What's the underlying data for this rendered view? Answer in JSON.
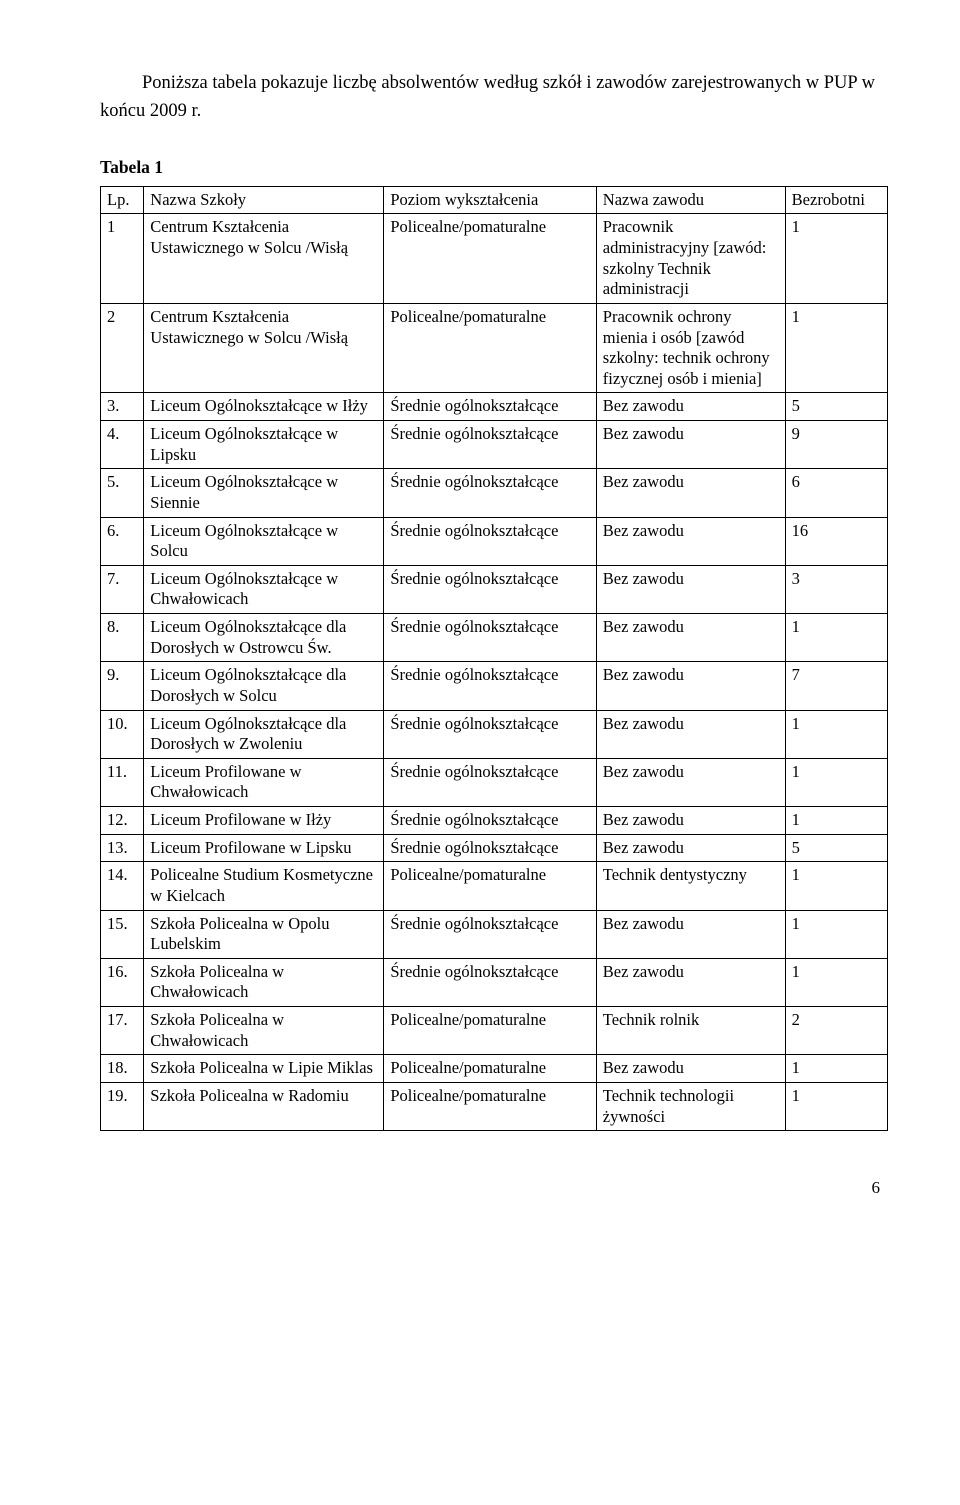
{
  "intro": "Poniższa tabela pokazuje liczbę absolwentów według szkół i zawodów zarejestrowanych w PUP w końcu 2009 r.",
  "table_label": "Tabela 1",
  "headers": {
    "lp": "Lp.",
    "school": "Nazwa Szkoły",
    "level": "Poziom wykształcenia",
    "job": "Nazwa zawodu",
    "count": "Bezrobotni"
  },
  "rows": [
    {
      "lp": "1",
      "school": "Centrum Kształcenia Ustawicznego w Solcu /Wisłą",
      "level": "Policealne/pomaturalne",
      "job": "Pracownik administracyjny [zawód: szkolny Technik administracji",
      "count": "1"
    },
    {
      "lp": "2",
      "school": "Centrum Kształcenia Ustawicznego w Solcu /Wisłą",
      "level": "Policealne/pomaturalne",
      "job": "Pracownik ochrony mienia i osób [zawód szkolny: technik ochrony fizycznej osób i mienia]",
      "count": "1"
    },
    {
      "lp": "3.",
      "school": " Liceum Ogólnokształcące w Iłży",
      "level": "Średnie ogólnokształcące",
      "job": "Bez zawodu",
      "count": "5"
    },
    {
      "lp": "4.",
      "school": "Liceum Ogólnokształcące w Lipsku",
      "level": "Średnie ogólnokształcące",
      "job": "Bez zawodu",
      "count": "9"
    },
    {
      "lp": "5.",
      "school": "Liceum Ogólnokształcące w Siennie",
      "level": "Średnie ogólnokształcące",
      "job": "Bez zawodu",
      "count": "6"
    },
    {
      "lp": "6.",
      "school": "Liceum Ogólnokształcące w Solcu",
      "level": "Średnie ogólnokształcące",
      "job": "Bez zawodu",
      "count": "16"
    },
    {
      "lp": "7.",
      "school": "Liceum Ogólnokształcące w Chwałowicach",
      "level": "Średnie ogólnokształcące",
      "job": "Bez zawodu",
      "count": "3"
    },
    {
      "lp": "8.",
      "school": "Liceum Ogólnokształcące dla Dorosłych w Ostrowcu Św.",
      "level": "Średnie ogólnokształcące",
      "job": "Bez zawodu",
      "count": "1"
    },
    {
      "lp": "9.",
      "school": "Liceum Ogólnokształcące dla Dorosłych w Solcu",
      "level": "Średnie ogólnokształcące",
      "job": "Bez zawodu",
      "count": "7"
    },
    {
      "lp": "10.",
      "school": "Liceum Ogólnokształcące dla Dorosłych w Zwoleniu",
      "level": "Średnie ogólnokształcące",
      "job": "Bez zawodu",
      "count": "1"
    },
    {
      "lp": "11.",
      "school": "Liceum Profilowane w Chwałowicach",
      "level": "Średnie ogólnokształcące",
      "job": "Bez zawodu",
      "count": "1"
    },
    {
      "lp": "12.",
      "school": "Liceum Profilowane w Iłży",
      "level": "Średnie ogólnokształcące",
      "job": "Bez zawodu",
      "count": "1"
    },
    {
      "lp": "13.",
      "school": "Liceum Profilowane w Lipsku",
      "level": "Średnie ogólnokształcące",
      "job": "Bez zawodu",
      "count": "5"
    },
    {
      "lp": "14.",
      "school": "Policealne Studium Kosmetyczne w Kielcach",
      "level": "Policealne/pomaturalne",
      "job": "Technik dentystyczny",
      "count": "1"
    },
    {
      "lp": "15.",
      "school": "Szkoła Policealna w Opolu Lubelskim",
      "level": "Średnie ogólnokształcące",
      "job": "Bez zawodu",
      "count": "1"
    },
    {
      "lp": "16.",
      "school": "Szkoła Policealna w Chwałowicach",
      "level": "Średnie ogólnokształcące",
      "job": "Bez zawodu",
      "count": "1"
    },
    {
      "lp": "17.",
      "school": "Szkoła Policealna w Chwałowicach",
      "level": "Policealne/pomaturalne",
      "job": "Technik rolnik",
      "count": "2"
    },
    {
      "lp": "18.",
      "school": "Szkoła Policealna w Lipie Miklas",
      "level": "Policealne/pomaturalne",
      "job": "Bez zawodu",
      "count": "1"
    },
    {
      "lp": "19.",
      "school": "Szkoła Policealna w Radomiu",
      "level": "Policealne/pomaturalne",
      "job": "Technik technologii żywności",
      "count": "1"
    }
  ],
  "page_number": "6",
  "style": {
    "font_family": "Times New Roman",
    "body_font_size_pt": 14,
    "table_font_size_pt": 12.5,
    "text_color": "#000000",
    "background_color": "#ffffff",
    "border_color": "#000000"
  }
}
